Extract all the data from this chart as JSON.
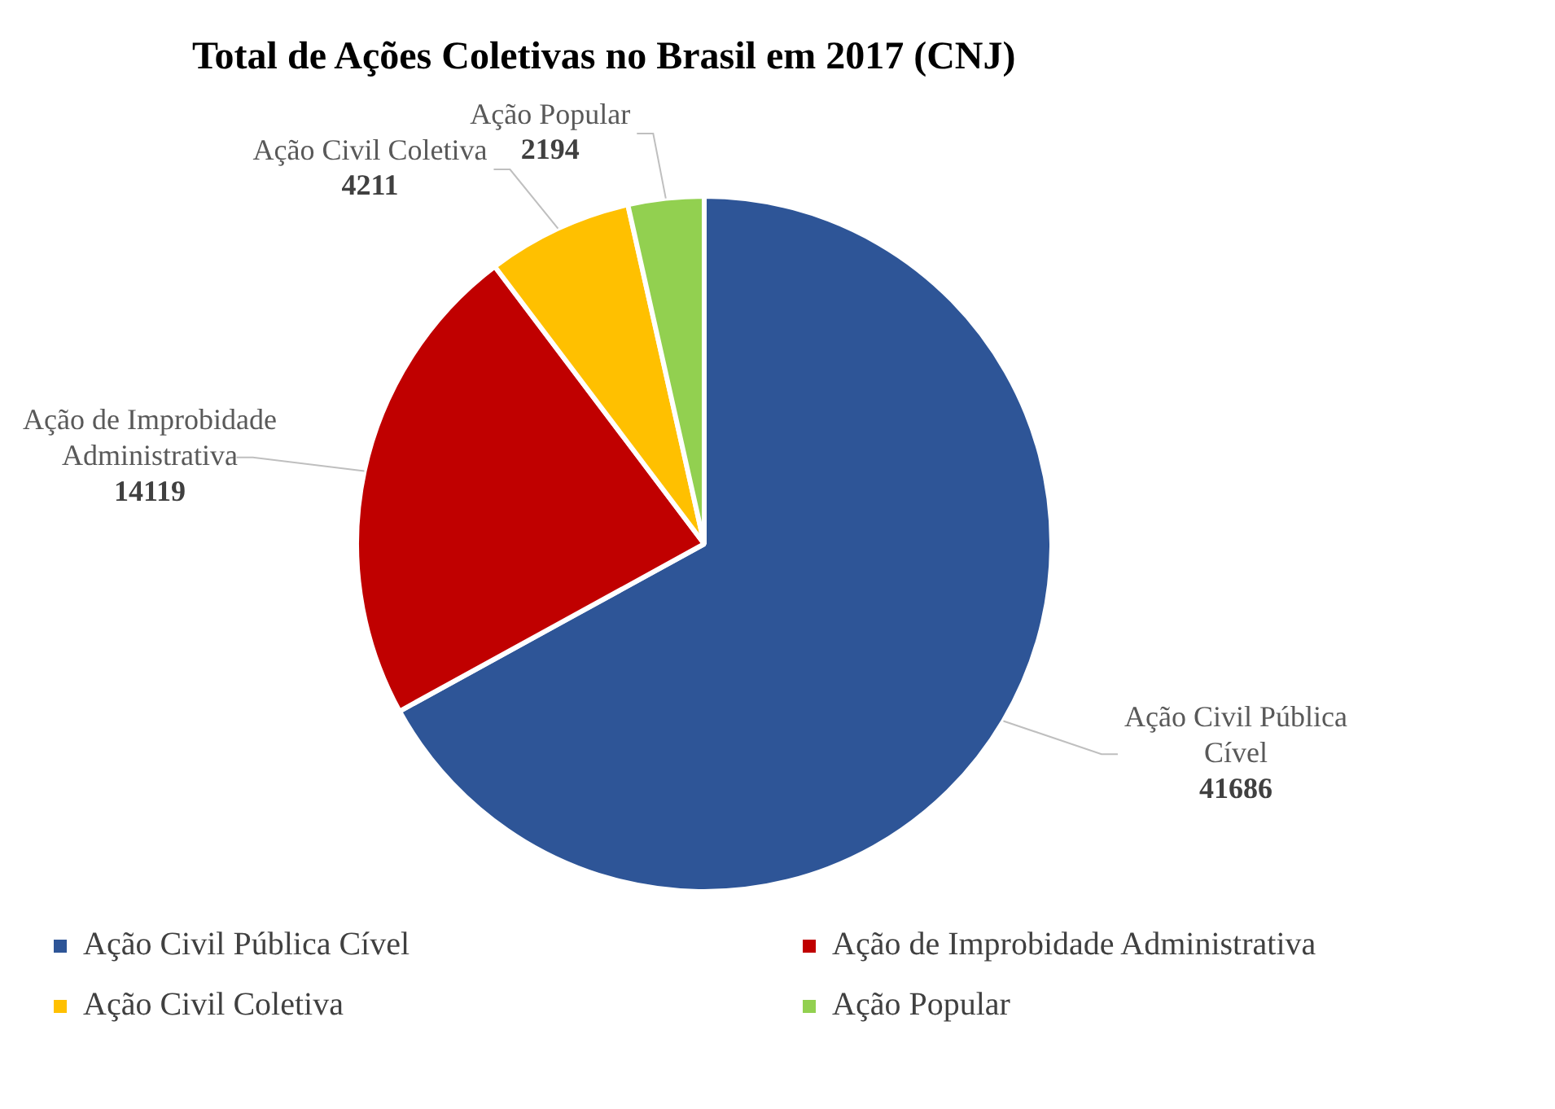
{
  "chart_data": {
    "type": "pie",
    "title": "Total de Ações Coletivas no Brasil em 2017 (CNJ)",
    "categories": [
      "Ação Civil Pública Cível",
      "Ação de Improbidade Administrativa",
      "Ação Civil Coletiva",
      "Ação Popular"
    ],
    "values": [
      41686,
      14119,
      4211,
      2194
    ],
    "colors": [
      "#2e5597",
      "#c00000",
      "#ffc000",
      "#92d050"
    ],
    "data_labels": true,
    "legend": "bottom"
  }
}
